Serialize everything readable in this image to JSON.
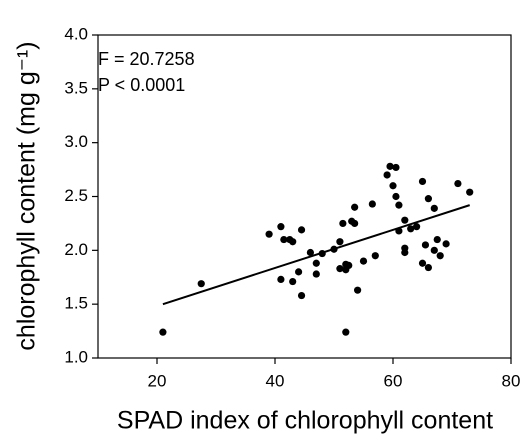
{
  "chart_data": {
    "type": "scatter",
    "xlabel": "SPAD index of chlorophyll content",
    "ylabel": "chlorophyll content (mg g⁻¹)",
    "annotations": [
      "F = 20.7258",
      "P < 0.0001"
    ],
    "color": "#000000",
    "xlim": [
      10,
      80
    ],
    "xticks": [
      20,
      40,
      60,
      80
    ],
    "ylim": [
      1,
      4
    ],
    "yticks": [
      {
        "value": 1,
        "label": "1.0"
      },
      1.5,
      {
        "value": 2,
        "label": "2.0"
      },
      2.5,
      {
        "value": 3,
        "label": "3.0"
      },
      3.5,
      {
        "value": 4,
        "label": "4.0"
      }
    ],
    "x": [
      21,
      27.5,
      39,
      41,
      41.5,
      42.5,
      43,
      41,
      43,
      44,
      44.5,
      44.5,
      46,
      47,
      47,
      48,
      50,
      51,
      51,
      51.5,
      52,
      52,
      52,
      52.5,
      53,
      53.5,
      53.5,
      54,
      55,
      56.5,
      57,
      59,
      59.5,
      60,
      60.5,
      60.5,
      61,
      61,
      62,
      62,
      62,
      63,
      64,
      65,
      65,
      65.5,
      66,
      66,
      67,
      67,
      67.5,
      68,
      69,
      71,
      73
    ],
    "values": [
      1.24,
      1.69,
      2.15,
      2.22,
      2.1,
      2.1,
      2.08,
      1.73,
      1.71,
      1.8,
      1.58,
      2.19,
      1.98,
      1.88,
      1.78,
      1.97,
      2.01,
      2.08,
      1.83,
      2.25,
      1.87,
      1.82,
      1.24,
      1.86,
      2.27,
      2.4,
      2.25,
      1.63,
      1.9,
      2.43,
      1.95,
      2.7,
      2.78,
      2.6,
      2.77,
      2.5,
      2.42,
      2.18,
      2.28,
      2.02,
      1.98,
      2.2,
      2.22,
      2.64,
      1.88,
      2.05,
      2.48,
      1.84,
      2.0,
      2.39,
      2.1,
      1.95,
      2.06,
      2.62,
      2.54
    ],
    "fit_line": {
      "x": [
        21,
        73
      ],
      "y": [
        1.5,
        2.42
      ]
    }
  }
}
